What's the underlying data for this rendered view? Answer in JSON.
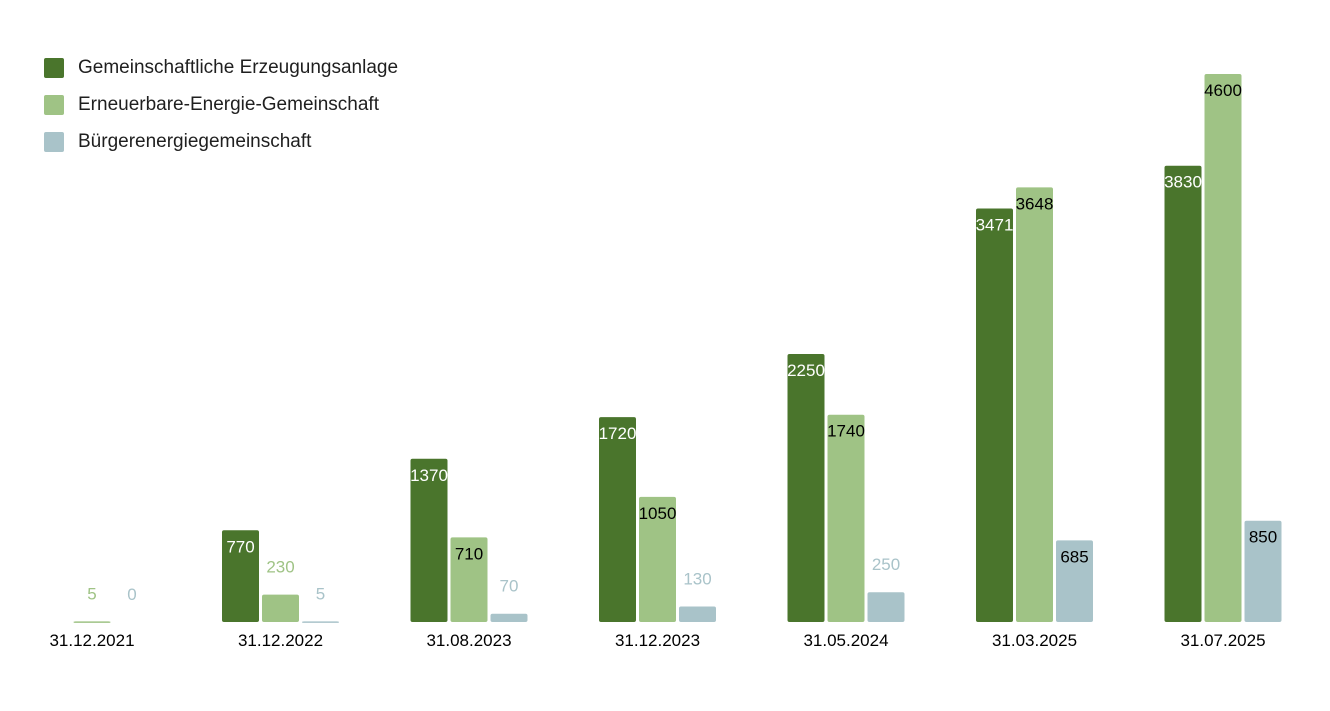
{
  "colors": {
    "series": [
      "#4a752c",
      "#9fc385",
      "#a9c3c9"
    ],
    "label_inside": "#ffffff",
    "label_dark": "#000000",
    "axis_text": "#000000"
  },
  "chart_data": {
    "type": "bar",
    "title": "",
    "xlabel": "",
    "ylabel": "",
    "ylim": [
      0,
      4600
    ],
    "grid": false,
    "legend_position": "top-left",
    "categories": [
      "31.12.2021",
      "31.12.2022",
      "31.08.2023",
      "31.12.2023",
      "31.05.2024",
      "31.03.2025",
      "31.07.2025"
    ],
    "series": [
      {
        "name": "Gemeinschaftliche Erzeugungsanlage",
        "values": [
          null,
          770,
          1370,
          1720,
          2250,
          3471,
          3830
        ]
      },
      {
        "name": "Erneuerbare-Energie-Gemeinschaft",
        "values": [
          5,
          230,
          710,
          1050,
          1740,
          3648,
          4600
        ]
      },
      {
        "name": "Bürgerenergiegemeinschaft",
        "values": [
          0,
          5,
          70,
          130,
          250,
          685,
          850
        ]
      }
    ]
  }
}
